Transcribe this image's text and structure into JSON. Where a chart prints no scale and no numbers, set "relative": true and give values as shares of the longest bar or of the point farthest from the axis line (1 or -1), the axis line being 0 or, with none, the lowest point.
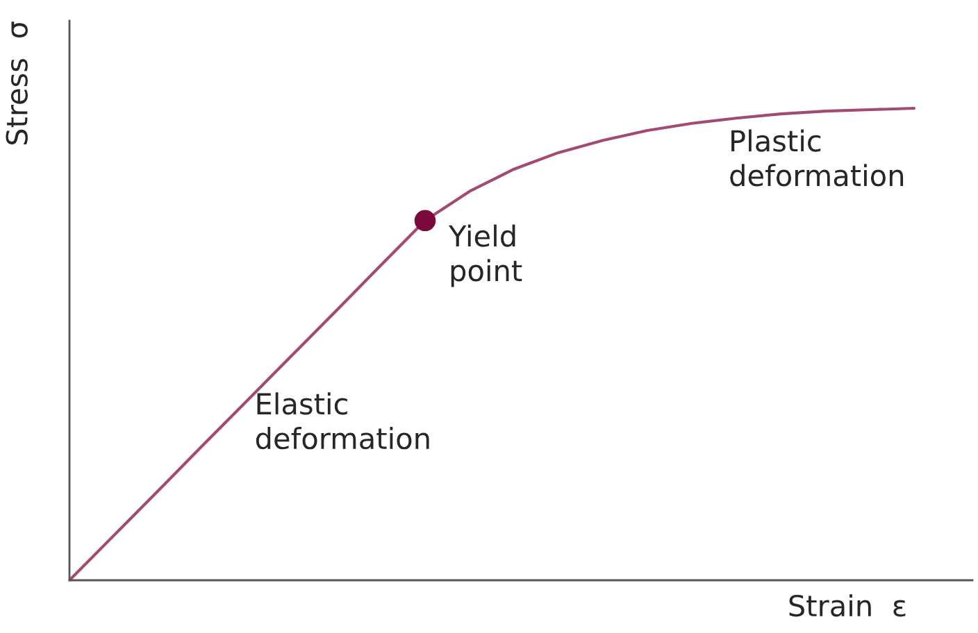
{
  "chart_data": {
    "type": "line",
    "relative": true,
    "tick_labels": false,
    "xlabel": "Strain  ε",
    "ylabel": "Stress  σ",
    "categories": [
      null,
      null,
      null,
      null,
      null,
      null,
      null,
      null,
      null,
      null,
      null,
      null,
      null,
      null,
      null,
      null,
      null,
      null,
      null,
      null
    ],
    "series": [
      {
        "color": "#a34a72",
        "values": [
          0,
          0.095,
          0.19,
          0.286,
          0.381,
          0.476,
          0.571,
          0.667,
          0.762,
          0.824,
          0.871,
          0.906,
          0.932,
          0.953,
          0.968,
          0.979,
          0.988,
          0.994,
          0.997,
          1.0
        ]
      }
    ],
    "annotations": [
      "Elastic\ndeformation",
      "Yield\npoint",
      "Plastic\ndeformation"
    ]
  }
}
